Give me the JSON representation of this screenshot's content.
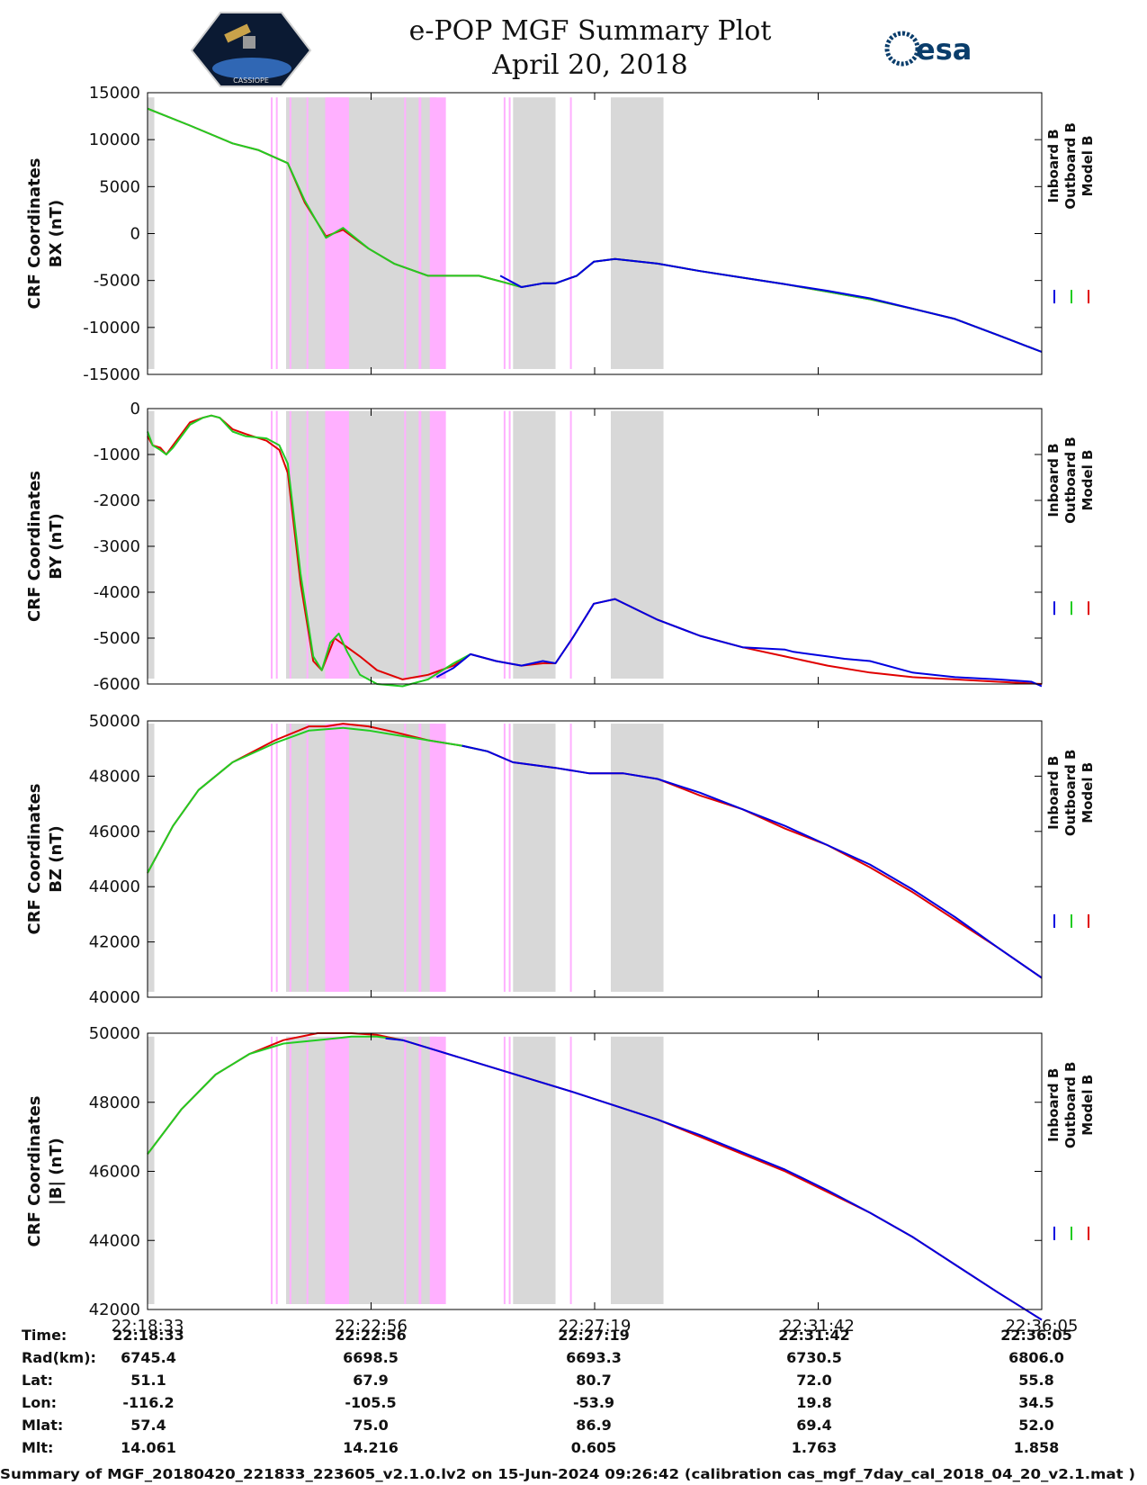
{
  "header": {
    "title_line1": "e-POP MGF Summary Plot",
    "title_line2": "April 20, 2018",
    "logo_left_text": "CASSIOPE",
    "logo_right_text": "esa"
  },
  "colors": {
    "inboard": "#0000e0",
    "outboard": "#22cc22",
    "model": "#e00000",
    "gray_band": "#d8d8d8",
    "pink_band": "#ffb0ff"
  },
  "chart_data": {
    "type": "line",
    "x_ticks": [
      "22:18:33",
      "22:22:56",
      "22:27:19",
      "22:31:42",
      "22:36:05"
    ],
    "x_range_seconds": [
      0,
      1052
    ],
    "legend": [
      "Inboard B",
      "Outboard B",
      "Model B"
    ],
    "bands": {
      "gray": [
        [
          0,
          8
        ],
        [
          163,
          340
        ],
        [
          430,
          480
        ],
        [
          545,
          607
        ]
      ],
      "pink": [
        [
          145,
          147
        ],
        [
          151,
          152
        ],
        [
          167,
          168
        ],
        [
          187,
          188
        ],
        [
          209,
          237
        ],
        [
          302,
          304
        ],
        [
          319,
          322
        ],
        [
          332,
          351
        ],
        [
          419,
          421
        ],
        [
          425,
          426
        ],
        [
          497,
          498
        ]
      ]
    },
    "panels": [
      {
        "ylabel1": "CRF Coordinates",
        "ylabel2": "BX (nT)",
        "ylim": [
          -15000,
          15000
        ],
        "yticks": [
          "15000",
          "10000",
          "5000",
          "0",
          "-5000",
          "-10000",
          "-15000"
        ],
        "band_top_value": 14500,
        "series": [
          {
            "name": "Model B",
            "x": [
              0,
              50,
              100,
              130,
              165,
              185,
              210,
              230,
              260,
              290,
              330,
              350,
              370,
              390,
              420,
              440,
              465,
              480,
              505,
              525,
              550,
              600,
              650,
              700,
              750,
              800,
              850,
              900,
              950,
              1000,
              1052
            ],
            "y": [
              13300,
              11500,
              9600,
              8900,
              7500,
              3300,
              -300,
              400,
              -1600,
              -3200,
              -4500,
              -4500,
              -4500,
              -4500,
              -5200,
              -5700,
              -5300,
              -5300,
              -4500,
              -3000,
              -2700,
              -3200,
              -4000,
              -4700,
              -5400,
              -6200,
              -7000,
              -8000,
              -9100,
              -10800,
              -12600
            ]
          },
          {
            "name": "Outboard B",
            "x": [
              0,
              50,
              100,
              130,
              165,
              185,
              210,
              230,
              260,
              290,
              330,
              350,
              370,
              390,
              420,
              440,
              465,
              480,
              505,
              525,
              550,
              600,
              650,
              700,
              750,
              800,
              850,
              900,
              950,
              1000,
              1052
            ],
            "y": [
              13300,
              11500,
              9600,
              8900,
              7500,
              3500,
              -450,
              600,
              -1600,
              -3200,
              -4500,
              -4500,
              -4500,
              -4500,
              -5200,
              -5700,
              -5300,
              -5300,
              -4500,
              -3000,
              -2700,
              -3200,
              -4000,
              -4700,
              -5400,
              -6200,
              -7000,
              -8000,
              -9100,
              -10800,
              -12600
            ]
          },
          {
            "name": "Inboard B",
            "x": [
              415,
              440,
              465,
              480,
              505,
              525,
              550,
              600,
              650,
              700,
              750,
              800,
              850,
              900,
              950,
              1000,
              1052
            ],
            "y": [
              -4500,
              -5700,
              -5300,
              -5300,
              -4500,
              -3000,
              -2700,
              -3200,
              -4000,
              -4700,
              -5400,
              -6100,
              -6900,
              -8000,
              -9100,
              -10800,
              -12600
            ]
          }
        ]
      },
      {
        "ylabel1": "CRF Coordinates",
        "ylabel2": "BY (nT)",
        "ylim": [
          -6000,
          0
        ],
        "yticks": [
          "0",
          "-1000",
          "-2000",
          "-3000",
          "-4000",
          "-5000",
          "-6000"
        ],
        "band_top_value": -50,
        "series": [
          {
            "name": "Model B",
            "x": [
              0,
              6,
              15,
              22,
              30,
              50,
              65,
              75,
              85,
              100,
              115,
              140,
              155,
              165,
              180,
              195,
              205,
              220,
              235,
              250,
              270,
              300,
              330,
              360,
              380,
              410,
              440,
              465,
              480,
              500,
              525,
              550,
              600,
              650,
              700,
              750,
              800,
              850,
              900,
              950,
              1000,
              1052
            ],
            "y": [
              -600,
              -800,
              -850,
              -1000,
              -800,
              -300,
              -200,
              -150,
              -200,
              -450,
              -550,
              -700,
              -900,
              -1400,
              -3800,
              -5500,
              -5700,
              -5000,
              -5200,
              -5400,
              -5700,
              -5900,
              -5800,
              -5600,
              -5350,
              -5500,
              -5600,
              -5550,
              -5550,
              -5000,
              -4250,
              -4150,
              -4600,
              -4950,
              -5200,
              -5400,
              -5600,
              -5750,
              -5850,
              -5900,
              -5950,
              -6000
            ]
          },
          {
            "name": "Outboard B",
            "x": [
              0,
              6,
              15,
              22,
              30,
              50,
              65,
              75,
              85,
              100,
              115,
              140,
              155,
              165,
              180,
              195,
              205,
              215,
              225,
              235,
              250,
              270,
              300,
              330,
              360,
              380
            ],
            "y": [
              -500,
              -800,
              -900,
              -1000,
              -850,
              -350,
              -200,
              -150,
              -200,
              -500,
              -600,
              -650,
              -800,
              -1200,
              -3600,
              -5400,
              -5700,
              -5100,
              -4900,
              -5300,
              -5800,
              -6000,
              -6050,
              -5900,
              -5550,
              -5350
            ]
          },
          {
            "name": "Inboard B",
            "x": [
              340,
              360,
              380,
              410,
              440,
              465,
              480,
              500,
              525,
              550,
              600,
              650,
              700,
              750,
              760,
              780,
              800,
              820,
              850,
              900,
              950,
              1000,
              1040,
              1052
            ],
            "y": [
              -5850,
              -5650,
              -5350,
              -5500,
              -5600,
              -5500,
              -5550,
              -5000,
              -4250,
              -4150,
              -4600,
              -4950,
              -5200,
              -5250,
              -5300,
              -5350,
              -5400,
              -5450,
              -5500,
              -5750,
              -5850,
              -5900,
              -5950,
              -6050
            ]
          }
        ]
      },
      {
        "ylabel1": "CRF Coordinates",
        "ylabel2": "BZ (nT)",
        "ylim": [
          40000,
          50000
        ],
        "yticks": [
          "50000",
          "48000",
          "46000",
          "44000",
          "42000",
          "40000"
        ],
        "band_top_value": 49900,
        "series": [
          {
            "name": "Model B",
            "x": [
              0,
              30,
              60,
              100,
              150,
              190,
              210,
              230,
              260,
              290,
              330,
              370,
              400,
              430,
              480,
              520,
              560,
              600,
              650,
              700,
              750,
              800,
              850,
              900,
              950,
              1000,
              1052
            ],
            "y": [
              44500,
              46200,
              47500,
              48500,
              49300,
              49800,
              49800,
              49900,
              49800,
              49600,
              49300,
              49100,
              48900,
              48500,
              48300,
              48100,
              48100,
              47900,
              47300,
              46800,
              46100,
              45500,
              44700,
              43800,
              42800,
              41800,
              40700
            ]
          },
          {
            "name": "Outboard B",
            "x": [
              0,
              30,
              60,
              100,
              150,
              190,
              210,
              230,
              260,
              290,
              330,
              370,
              400
            ],
            "y": [
              44500,
              46200,
              47500,
              48500,
              49200,
              49650,
              49700,
              49750,
              49650,
              49500,
              49300,
              49100,
              48900
            ]
          },
          {
            "name": "Inboard B",
            "x": [
              370,
              400,
              430,
              480,
              520,
              560,
              600,
              650,
              700,
              750,
              800,
              850,
              900,
              950,
              1000,
              1052
            ],
            "y": [
              49100,
              48900,
              48500,
              48300,
              48100,
              48100,
              47900,
              47400,
              46800,
              46200,
              45500,
              44800,
              43900,
              42900,
              41800,
              40700
            ]
          }
        ]
      },
      {
        "ylabel1": "CRF Coordinates",
        "ylabel2": "|B| (nT)",
        "ylim": [
          42000,
          50000
        ],
        "yticks": [
          "50000",
          "48000",
          "46000",
          "44000",
          "42000"
        ],
        "band_top_value": 49900,
        "series": [
          {
            "name": "Model B",
            "x": [
              0,
              40,
              80,
              120,
              160,
              200,
              240,
              270,
              300,
              340,
              380,
              420,
              460,
              500,
              550,
              600,
              650,
              700,
              750,
              800,
              850,
              900,
              950,
              1000,
              1052
            ],
            "y": [
              46500,
              47800,
              48800,
              49400,
              49800,
              50000,
              50000,
              49950,
              49800,
              49500,
              49200,
              48900,
              48600,
              48300,
              47900,
              47500,
              47000,
              46500,
              46000,
              45400,
              44800,
              44100,
              43300,
              42500,
              41700
            ]
          },
          {
            "name": "Outboard B",
            "x": [
              0,
              40,
              80,
              120,
              160,
              200,
              240,
              270,
              300
            ],
            "y": [
              46500,
              47800,
              48800,
              49400,
              49700,
              49800,
              49900,
              49900,
              49800
            ]
          },
          {
            "name": "Inboard B",
            "x": [
              280,
              300,
              340,
              380,
              420,
              460,
              500,
              550,
              600,
              650,
              700,
              750,
              800,
              850,
              900,
              950,
              1000,
              1052
            ],
            "y": [
              49850,
              49800,
              49500,
              49200,
              48900,
              48600,
              48300,
              47900,
              47500,
              47050,
              46550,
              46050,
              45450,
              44800,
              44100,
              43300,
              42500,
              41700
            ]
          }
        ]
      }
    ]
  },
  "ephemeris": {
    "labels": [
      "Time:",
      "Rad(km):",
      "Lat:",
      "Lon:",
      "Mlat:",
      "Mlt:"
    ],
    "columns": [
      [
        "22:18:33",
        "6745.4",
        "51.1",
        "-116.2",
        "57.4",
        "14.061"
      ],
      [
        "22:22:56",
        "6698.5",
        "67.9",
        "-105.5",
        "75.0",
        "14.216"
      ],
      [
        "22:27:19",
        "6693.3",
        "80.7",
        "-53.9",
        "86.9",
        "0.605"
      ],
      [
        "22:31:42",
        "6730.5",
        "72.0",
        "19.8",
        "69.4",
        "1.763"
      ],
      [
        "22:36:05",
        "6806.0",
        "55.8",
        "34.5",
        "52.0",
        "1.858"
      ]
    ]
  },
  "footer": "Summary of MGF_20180420_221833_223605_v2.1.0.lv2 on 15-Jun-2024 09:26:42 (calibration cas_mgf_7day_cal_2018_04_20_v2.1.mat )"
}
